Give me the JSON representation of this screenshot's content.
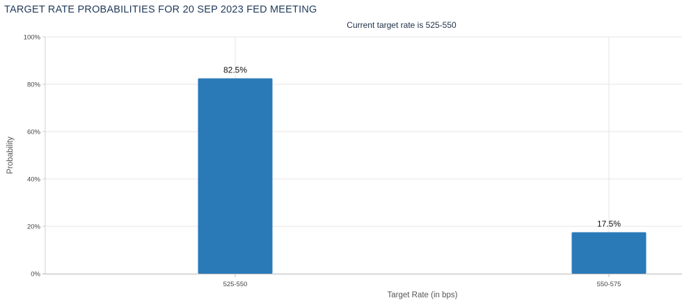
{
  "header": {
    "title": "TARGET RATE PROBABILITIES FOR 20 SEP 2023 FED MEETING"
  },
  "chart_data": {
    "type": "bar",
    "title": "TARGET RATE PROBABILITIES FOR 20 SEP 2023 FED MEETING",
    "subtitle": "Current target rate is 525-550",
    "categories": [
      "525-550",
      "550-575"
    ],
    "values": [
      82.5,
      17.5
    ],
    "data_labels": [
      "82.5%",
      "17.5%"
    ],
    "xlabel": "Target Rate (in bps)",
    "ylabel": "Probability",
    "ylim": [
      0,
      100
    ],
    "yticks": [
      "0%",
      "20%",
      "40%",
      "60%",
      "80%",
      "100%"
    ],
    "grid": true,
    "bar_color": "#2a7ab8"
  }
}
